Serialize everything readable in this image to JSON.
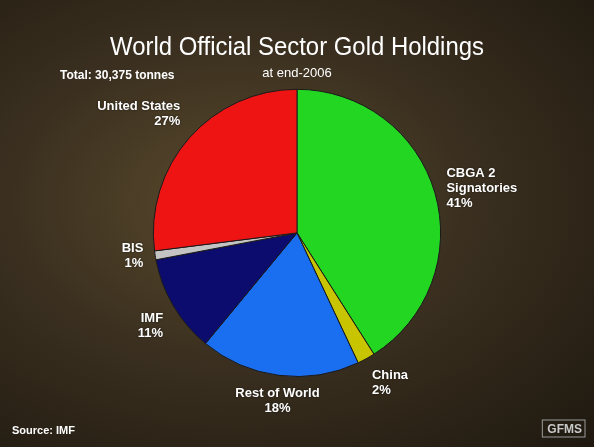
{
  "chart_data": {
    "type": "pie",
    "title": "World Official Sector Gold Holdings",
    "subtitle": "at end-2006",
    "note": "Total: 30,375 tonnes",
    "source": "Source: IMF",
    "logo": "GFMS",
    "categories": [
      "CBGA 2 Signatories",
      "China",
      "Rest of World",
      "IMF",
      "BIS",
      "United States"
    ],
    "values": [
      41,
      2,
      18,
      11,
      1,
      27
    ],
    "value_labels": [
      "41%",
      "2%",
      "18%",
      "11%",
      "1%",
      "27%"
    ],
    "colors": [
      "#22d622",
      "#c8c400",
      "#1a6ef0",
      "#0c0c6e",
      "#c4c4c4",
      "#ee1414"
    ],
    "data_labels": true,
    "legend": false
  }
}
